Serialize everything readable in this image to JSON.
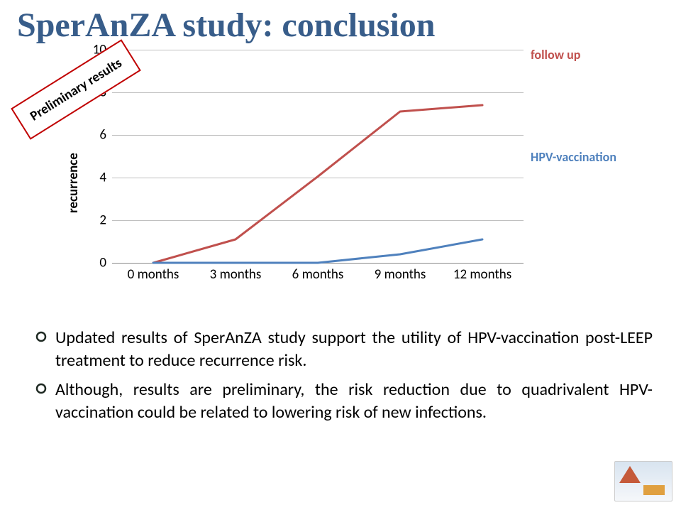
{
  "title": "SperAnZA study: conclusion",
  "preliminary_label": "Preliminary results",
  "chart": {
    "type": "line",
    "y_axis": {
      "label": "recurrence",
      "min": 0,
      "max": 10,
      "step": 2,
      "ticks": [
        0,
        2,
        4,
        6,
        8,
        10
      ],
      "label_fontsize": 19,
      "tick_fontsize": 19,
      "tick_color": "#000000"
    },
    "x_axis": {
      "categories": [
        "0 months",
        "3 months",
        "6 months",
        "9 months",
        "12 months"
      ],
      "tick_fontsize": 19,
      "tick_color": "#000000"
    },
    "grid": {
      "color": "#bfbfbf",
      "axis_color": "#888888"
    },
    "series": [
      {
        "name": "follow up",
        "label": "follow up",
        "color": "#c0504d",
        "line_width": 3,
        "label_fontsize": 18,
        "label_color": "#c0504d",
        "values": [
          0,
          1.1,
          4.05,
          7.1,
          7.4
        ]
      },
      {
        "name": "HPV-vaccination",
        "label": "HPV-vaccination",
        "color": "#4f81bd",
        "line_width": 3,
        "label_fontsize": 18,
        "label_color": "#4f81bd",
        "values": [
          0,
          0,
          0,
          0.4,
          1.1
        ]
      }
    ],
    "background_color": "#ffffff"
  },
  "bullets": {
    "marker_color": "#1f2a23",
    "items": [
      "Updated results of SperAnZA study support the utility of HPV-vaccination post-LEEP treatment to reduce recurrence risk.",
      "Although, results are preliminary, the risk reduction due to quadrivalent HPV-vaccination could be related to lowering risk of new infections."
    ]
  }
}
